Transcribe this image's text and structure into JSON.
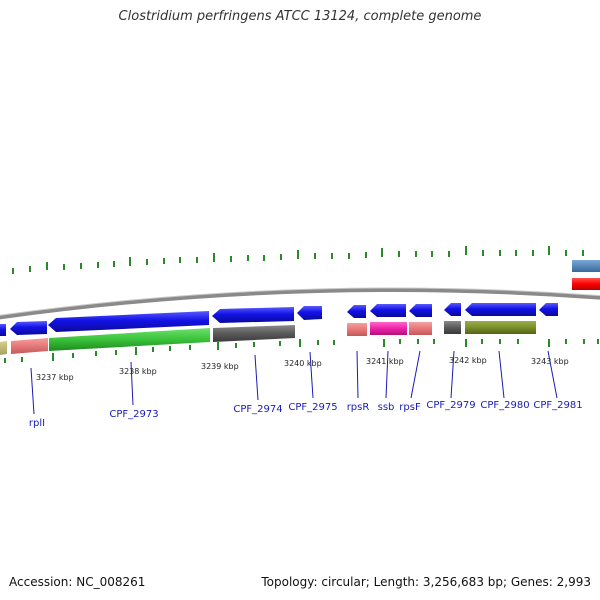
{
  "title": "Clostridium perfringens ATCC 13124, complete genome",
  "footer": {
    "accession": "Accession: NC_008261",
    "topology": "Topology: circular; Length: 3,256,683 bp; Genes: 2,993"
  },
  "ticks": [
    "3237 kbp",
    "3238 kbp",
    "3239 kbp",
    "3240 kbp",
    "3241 kbp",
    "3242 kbp",
    "3243 kbp"
  ],
  "gene_labels": [
    "rplI",
    "CPF_2973",
    "CPF_2974",
    "CPF_2975",
    "rpsR",
    "ssb",
    "rpsF",
    "CPF_2979",
    "CPF_2980",
    "CPF_2981"
  ],
  "colors": {
    "cds": "#1010e0",
    "backbone": "#8a8a8a",
    "tick": "#2a8a2a",
    "label": "#1a1ab8"
  }
}
